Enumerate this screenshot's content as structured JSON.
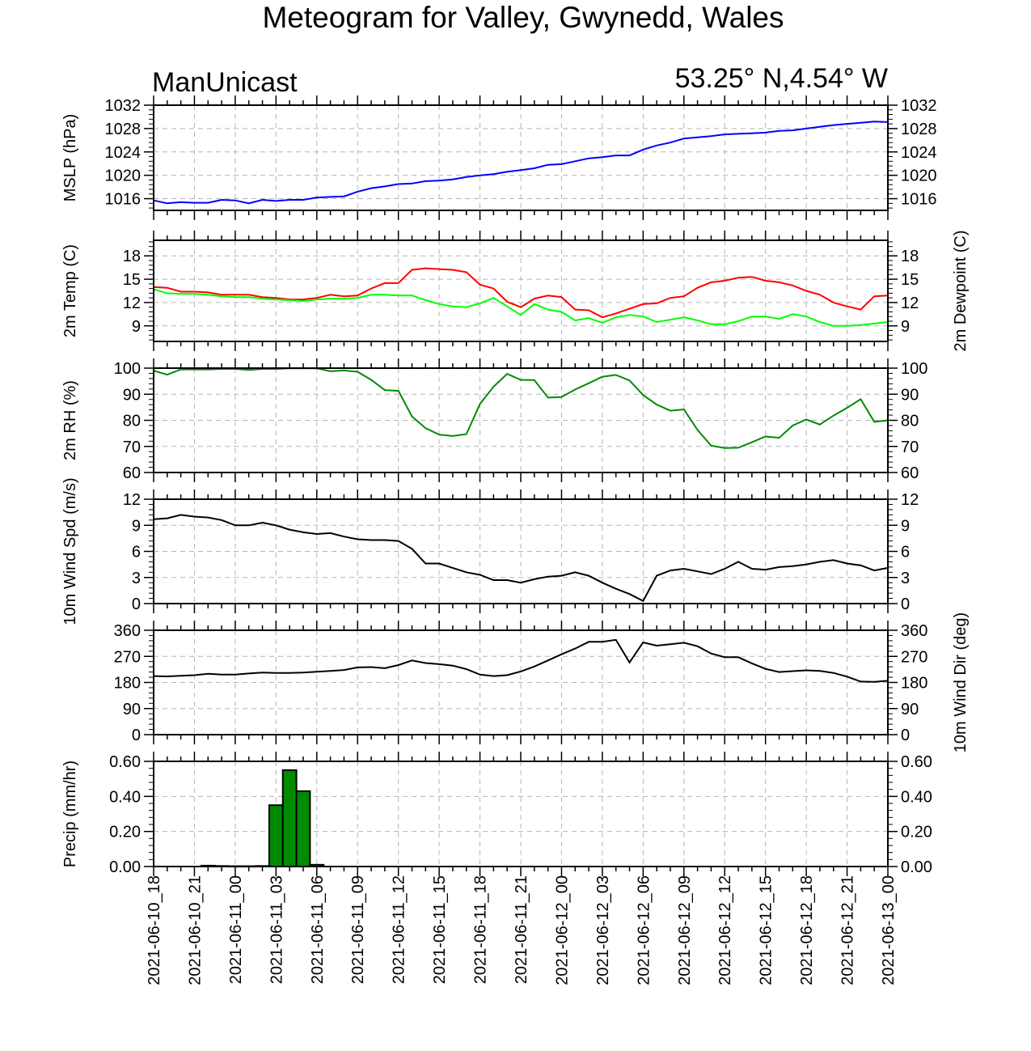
{
  "title": "Meteogram for Valley, Gwynedd, Wales",
  "model_label": "ManUnicast",
  "location_label": "53.25° N,4.54° W",
  "x_tick_labels": [
    "2021-06-10_18",
    "2021-06-10_21",
    "2021-06-11_00",
    "2021-06-11_03",
    "2021-06-11_06",
    "2021-06-11_09",
    "2021-06-11_12",
    "2021-06-11_15",
    "2021-06-11_18",
    "2021-06-11_21",
    "2021-06-12_00",
    "2021-06-12_03",
    "2021-06-12_06",
    "2021-06-12_09",
    "2021-06-12_12",
    "2021-06-12_15",
    "2021-06-12_18",
    "2021-06-12_21",
    "2021-06-13_00"
  ],
  "chart_data": [
    {
      "type": "line",
      "ylabel": "MSLP (hPa)",
      "ylim": [
        1014,
        1032
      ],
      "yticks": [
        1016,
        1020,
        1024,
        1028,
        1032
      ],
      "ytick_labels": [
        "1016",
        "1020",
        "1024",
        "1028",
        "1032"
      ],
      "x_hours": [
        0,
        1,
        2,
        3,
        4,
        5,
        6,
        7,
        8,
        9,
        10,
        11,
        12,
        13,
        14,
        15,
        16,
        17,
        18,
        19,
        20,
        21,
        22,
        23,
        24,
        25,
        26,
        27,
        28,
        29,
        30,
        31,
        32,
        33,
        34,
        35,
        36,
        37,
        38,
        39,
        40,
        41,
        42,
        43,
        44,
        45,
        46,
        47,
        48,
        49,
        50,
        51,
        52,
        53,
        54
      ],
      "series": [
        {
          "color": "#0000ff",
          "values": [
            1015.7,
            1015.2,
            1015.4,
            1015.3,
            1015.3,
            1015.8,
            1015.7,
            1015.2,
            1015.8,
            1015.6,
            1015.8,
            1015.8,
            1016.2,
            1016.3,
            1016.4,
            1017.2,
            1017.8,
            1018.1,
            1018.5,
            1018.6,
            1019.0,
            1019.1,
            1019.3,
            1019.7,
            1020.0,
            1020.2,
            1020.6,
            1020.9,
            1021.2,
            1021.8,
            1021.9,
            1022.4,
            1022.9,
            1023.1,
            1023.4,
            1023.4,
            1024.4,
            1025.1,
            1025.6,
            1026.3,
            1026.5,
            1026.7,
            1027.0,
            1027.1,
            1027.2,
            1027.3,
            1027.6,
            1027.7,
            1028.0,
            1028.3,
            1028.6,
            1028.8,
            1029.0,
            1029.2,
            1029.1
          ]
        }
      ]
    },
    {
      "type": "line",
      "ylabel": "2m Temp (C)",
      "ylabel_right": "2m Dewpoint (C)",
      "ylim": [
        7,
        20
      ],
      "yticks": [
        9,
        12,
        15,
        18
      ],
      "ytick_labels": [
        "9",
        "12",
        "15",
        "18"
      ],
      "x_hours": [
        0,
        1,
        2,
        3,
        4,
        5,
        6,
        7,
        8,
        9,
        10,
        11,
        12,
        13,
        14,
        15,
        16,
        17,
        18,
        19,
        20,
        21,
        22,
        23,
        24,
        25,
        26,
        27,
        28,
        29,
        30,
        31,
        32,
        33,
        34,
        35,
        36,
        37,
        38,
        39,
        40,
        41,
        42,
        43,
        44,
        45,
        46,
        47,
        48,
        49,
        50,
        51,
        52,
        53,
        54
      ],
      "series": [
        {
          "color": "#ff0000",
          "values": [
            14.0,
            13.9,
            13.4,
            13.4,
            13.3,
            13.0,
            13.0,
            13.0,
            12.7,
            12.6,
            12.4,
            12.4,
            12.6,
            13.0,
            12.8,
            12.9,
            13.8,
            14.5,
            14.5,
            16.2,
            16.4,
            16.3,
            16.2,
            15.9,
            14.3,
            13.8,
            12.1,
            11.4,
            12.5,
            12.9,
            12.7,
            11.1,
            11.0,
            10.1,
            10.6,
            11.2,
            11.8,
            11.9,
            12.6,
            12.8,
            13.9,
            14.6,
            14.8,
            15.2,
            15.3,
            14.8,
            14.6,
            14.2,
            13.5,
            13.0,
            12.0,
            11.5,
            11.1,
            12.8,
            12.9
          ]
        },
        {
          "color": "#00ff00",
          "values": [
            13.7,
            13.2,
            13.1,
            13.1,
            13.0,
            12.8,
            12.7,
            12.7,
            12.5,
            12.4,
            12.3,
            12.2,
            12.4,
            12.5,
            12.5,
            12.6,
            13.0,
            13.0,
            12.9,
            12.9,
            12.3,
            11.8,
            11.5,
            11.4,
            11.9,
            12.6,
            11.5,
            10.4,
            11.8,
            11.1,
            10.8,
            9.7,
            10.0,
            9.4,
            10.1,
            10.4,
            10.2,
            9.5,
            9.8,
            10.1,
            9.7,
            9.2,
            9.2,
            9.6,
            10.2,
            10.2,
            9.9,
            10.5,
            10.2,
            9.5,
            9.0,
            9.0,
            9.1,
            9.3,
            9.5
          ]
        }
      ]
    },
    {
      "type": "line",
      "ylabel": "2m RH (%)",
      "ylim": [
        60,
        100
      ],
      "yticks": [
        60,
        70,
        80,
        90,
        100
      ],
      "ytick_labels": [
        "60",
        "70",
        "80",
        "90",
        "100"
      ],
      "x_hours": [
        0,
        1,
        2,
        3,
        4,
        5,
        6,
        7,
        8,
        9,
        10,
        11,
        12,
        13,
        14,
        15,
        16,
        17,
        18,
        19,
        20,
        21,
        22,
        23,
        24,
        25,
        26,
        27,
        28,
        29,
        30,
        31,
        32,
        33,
        34,
        35,
        36,
        37,
        38,
        39,
        40,
        41,
        42,
        43,
        44,
        45,
        46,
        47,
        48,
        49,
        50,
        51,
        52,
        53,
        54
      ],
      "series": [
        {
          "color": "#008b00",
          "values": [
            99,
            97.5,
            99.5,
            99.5,
            99.5,
            99.7,
            99.7,
            99.3,
            99.7,
            99.7,
            99.9,
            99.9,
            99.9,
            98.8,
            99.1,
            98.6,
            95.5,
            91.6,
            91.3,
            81.5,
            77,
            74.5,
            74,
            74.7,
            86.3,
            92.9,
            97.8,
            95.5,
            95.4,
            88.7,
            88.9,
            91.8,
            94.2,
            96.7,
            97.4,
            95.3,
            89.7,
            86,
            83.7,
            84.2,
            76.3,
            70.3,
            69.4,
            69.5,
            71.6,
            73.8,
            73.3,
            78,
            80.3,
            78.4,
            81.8,
            84.8,
            88.1,
            79.4,
            80
          ]
        }
      ]
    },
    {
      "type": "line",
      "ylabel": "10m Wind Spd (m/s)",
      "ylim": [
        0,
        12
      ],
      "yticks": [
        0,
        3,
        6,
        9,
        12
      ],
      "ytick_labels": [
        "0",
        "3",
        "6",
        "9",
        "12"
      ],
      "x_hours": [
        0,
        1,
        2,
        3,
        4,
        5,
        6,
        7,
        8,
        9,
        10,
        11,
        12,
        13,
        14,
        15,
        16,
        17,
        18,
        19,
        20,
        21,
        22,
        23,
        24,
        25,
        26,
        27,
        28,
        29,
        30,
        31,
        32,
        33,
        34,
        35,
        36,
        37,
        38,
        39,
        40,
        41,
        42,
        43,
        44,
        45,
        46,
        47,
        48,
        49,
        50,
        51,
        52,
        53,
        54
      ],
      "series": [
        {
          "color": "#000000",
          "values": [
            9.7,
            9.8,
            10.2,
            10.0,
            9.9,
            9.6,
            9.0,
            9.0,
            9.3,
            9.0,
            8.5,
            8.2,
            8.0,
            8.1,
            7.7,
            7.4,
            7.3,
            7.3,
            7.2,
            6.3,
            4.6,
            4.6,
            4.1,
            3.6,
            3.3,
            2.7,
            2.7,
            2.4,
            2.8,
            3.1,
            3.2,
            3.6,
            3.2,
            2.4,
            1.7,
            1.1,
            0.3,
            3.2,
            3.8,
            4.0,
            3.7,
            3.4,
            4.0,
            4.8,
            4.0,
            3.9,
            4.2,
            4.3,
            4.5,
            4.8,
            5.0,
            4.6,
            4.4,
            3.8,
            4.1
          ]
        }
      ]
    },
    {
      "type": "line",
      "ylabel_right": "10m Wind Dir (deg)",
      "ylim": [
        0,
        360
      ],
      "yticks": [
        0,
        90,
        180,
        270,
        360
      ],
      "ytick_labels": [
        "0",
        "90",
        "180",
        "270",
        "360"
      ],
      "x_hours": [
        0,
        1,
        2,
        3,
        4,
        5,
        6,
        7,
        8,
        9,
        10,
        11,
        12,
        13,
        14,
        15,
        16,
        17,
        18,
        19,
        20,
        21,
        22,
        23,
        24,
        25,
        26,
        27,
        28,
        29,
        30,
        31,
        32,
        33,
        34,
        35,
        36,
        37,
        38,
        39,
        40,
        41,
        42,
        43,
        44,
        45,
        46,
        47,
        48,
        49,
        50,
        51,
        52,
        53,
        54
      ],
      "series": [
        {
          "color": "#000000",
          "values": [
            202,
            201,
            203,
            205,
            210,
            207,
            207,
            211,
            214,
            213,
            213,
            214,
            217,
            220,
            223,
            232,
            233,
            229,
            240,
            256,
            247,
            243,
            238,
            226,
            207,
            202,
            205,
            218,
            235,
            256,
            277,
            297,
            320,
            320,
            327,
            249,
            318,
            307,
            312,
            317,
            305,
            280,
            267,
            267,
            246,
            227,
            216,
            219,
            222,
            220,
            213,
            200,
            183,
            182,
            186
          ]
        }
      ]
    },
    {
      "type": "bar",
      "ylabel": "Precip (mm/hr)",
      "ylim": [
        0,
        0.6
      ],
      "yticks": [
        0,
        0.2,
        0.4,
        0.6
      ],
      "ytick_labels": [
        "0.00",
        "0.20",
        "0.40",
        "0.60"
      ],
      "x_hours": [
        4,
        5,
        6,
        7,
        8,
        9,
        10,
        11,
        12
      ],
      "series": [
        {
          "color": "#008b00",
          "values": [
            0.005,
            0.003,
            0.002,
            0.002,
            0.003,
            0.35,
            0.55,
            0.43,
            0.01
          ]
        }
      ]
    }
  ]
}
